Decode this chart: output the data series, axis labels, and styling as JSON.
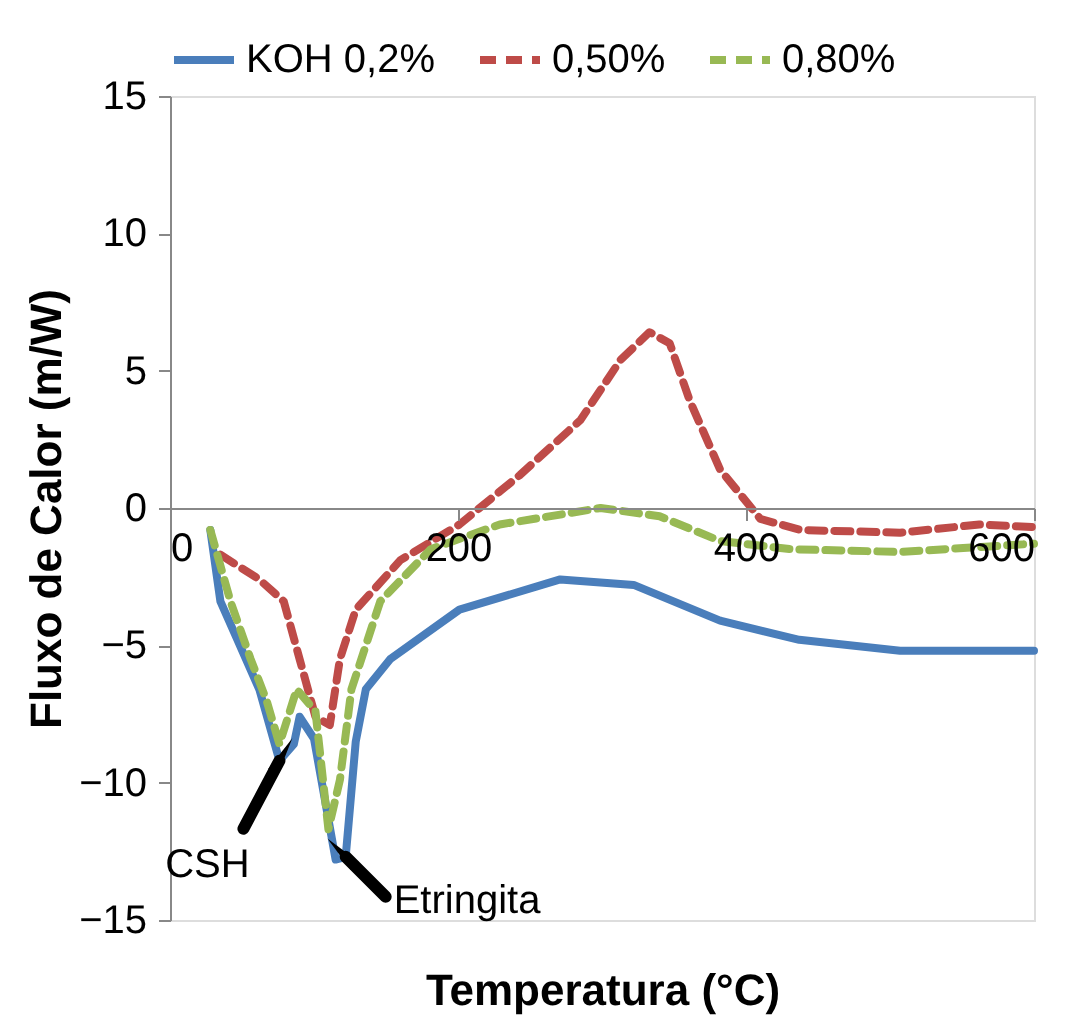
{
  "chart_data": {
    "type": "line",
    "xlabel": "Temperatura (°C)",
    "ylabel": "Fluxo de Calor (m/W)",
    "xlim": [
      0,
      600
    ],
    "xticks": [
      0,
      200,
      400,
      600
    ],
    "ylim": [
      -15,
      15
    ],
    "yticks": [
      -15,
      -10,
      -5,
      0,
      5,
      10,
      15
    ],
    "grid": false,
    "legend": "top",
    "marker": "none",
    "series": [
      {
        "name": "KOH 0,2%",
        "color": "#4a7ebb",
        "line_style": "solid",
        "x": [
          28,
          35,
          46,
          62,
          76,
          86,
          90,
          100,
          115,
          122,
          129,
          136,
          153,
          201,
          271,
          322,
          382,
          437,
          507,
          600
        ],
        "values": [
          -0.8,
          -3.4,
          -4.7,
          -6.6,
          -9.2,
          -8.6,
          -7.6,
          -8.4,
          -12.8,
          -12.7,
          -8.5,
          -6.6,
          -5.5,
          -3.7,
          -2.6,
          -2.8,
          -4.1,
          -4.8,
          -5.2,
          -5.2
        ]
      },
      {
        "name": "0,50%",
        "color": "#be4b48",
        "line_style": "dashed",
        "x": [
          35,
          62,
          79,
          90,
          101,
          111,
          118,
          129,
          160,
          201,
          243,
          285,
          313,
          333,
          347,
          361,
          382,
          410,
          438,
          507,
          562,
          600
        ],
        "values": [
          -1.7,
          -2.6,
          -3.4,
          -5.5,
          -7.6,
          -7.9,
          -5.5,
          -3.7,
          -1.9,
          -0.6,
          1.2,
          3.2,
          5.4,
          6.4,
          6.0,
          3.9,
          1.4,
          -0.4,
          -0.8,
          -0.9,
          -0.6,
          -0.7
        ]
      },
      {
        "name": "0,80%",
        "color": "#98b954",
        "line_style": "dashed",
        "x": [
          28,
          42,
          56,
          67,
          76,
          88,
          101,
          110,
          118,
          126,
          146,
          181,
          229,
          299,
          340,
          382,
          431,
          507,
          600
        ],
        "values": [
          -0.8,
          -3.4,
          -5.5,
          -7.0,
          -8.6,
          -6.6,
          -7.4,
          -11.7,
          -9.9,
          -6.6,
          -3.4,
          -1.5,
          -0.6,
          0.0,
          -0.3,
          -1.2,
          -1.5,
          -1.6,
          -1.3
        ]
      }
    ],
    "annotations": [
      {
        "text": "CSH",
        "x": 76,
        "y": -9.2
      },
      {
        "text": "Etringita",
        "x": 122,
        "y": -12.7
      }
    ]
  }
}
